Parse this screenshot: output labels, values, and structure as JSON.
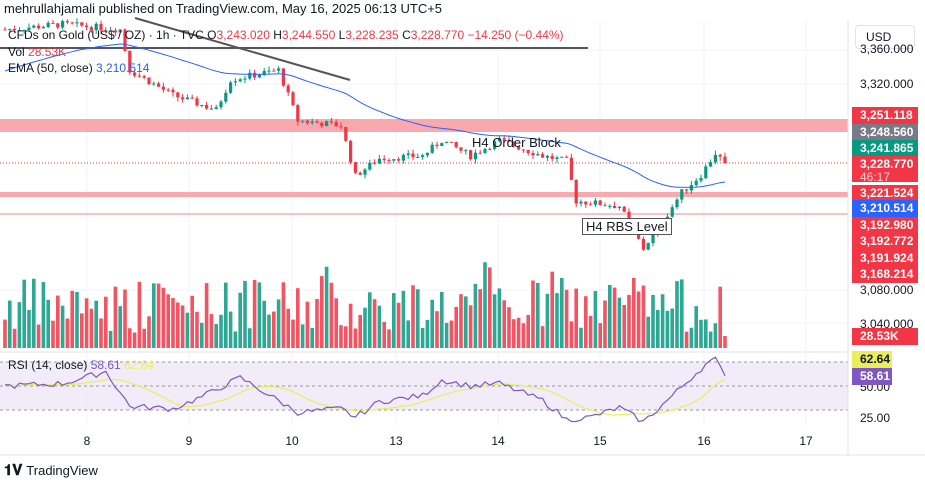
{
  "header": {
    "published": "mehrullahjamali published on TradingView.com, May 16, 2025 06:13 UTC+5"
  },
  "legend": {
    "symbol": "CFDs on Gold (US$ / OZ) · 1h · TVC",
    "o_label": "O",
    "open": "3,243.020",
    "h_label": "H",
    "high": "3,244.550",
    "l_label": "L",
    "low": "3,228.235",
    "c_label": "C",
    "close": "3,228.770",
    "change": "−14.250 (−0.44%)",
    "vol_label": "Vol",
    "vol_value": "28.53K",
    "ema_label": "EMA (50, close)",
    "ema_value": "3,210.514",
    "rsi_label": "RSI (14, close)",
    "rsi_value": "58.61",
    "rsi_ma_value": "62.64"
  },
  "annotations": {
    "order_block": "H4 Order Block",
    "rbs": "H4 RBS Level"
  },
  "axis": {
    "currency": "USD",
    "ticks": [
      "3,360.000",
      "3,320.000",
      "3,080.000",
      "3,040.000"
    ],
    "rsi_ticks": [
      "50.00",
      "25.00"
    ]
  },
  "price_labels": [
    {
      "text": "3,251.118",
      "color": "#f23645"
    },
    {
      "text": "3,248.560",
      "color": "#787b86"
    },
    {
      "text": "3,241.865",
      "color": "#089981"
    },
    {
      "text": "3,228.770",
      "color": "#f23645",
      "sub": "46:17"
    },
    {
      "text": "3,221.524",
      "color": "#f23645"
    },
    {
      "text": "3,210.514",
      "color": "#2962ff"
    },
    {
      "text": "3,192.980",
      "color": "#f23645"
    },
    {
      "text": "3,192.772",
      "color": "#f23645"
    },
    {
      "text": "3,191.924",
      "color": "#f23645"
    },
    {
      "text": "3,168.214",
      "color": "#f23645"
    }
  ],
  "vol_label_box": "28.53K",
  "rsi_boxes": {
    "ma": "62.64",
    "rsi": "58.61"
  },
  "x_axis": [
    "8",
    "9",
    "10",
    "13",
    "14",
    "15",
    "16",
    "17"
  ],
  "footer": {
    "brand": "TradingView"
  },
  "colors": {
    "up": "#089981",
    "down": "#f23645",
    "ema": "#2962ff",
    "rsi": "#7e57c2",
    "rsi_ma": "#e8ef5a"
  },
  "chart_data": {
    "type": "candlestick",
    "title": "CFDs on Gold (US$ / OZ) · 1h · TVC",
    "close_keypoints": [
      [
        0,
        3383
      ],
      [
        12,
        3389
      ],
      [
        24,
        3383
      ],
      [
        26,
        3336
      ],
      [
        35,
        3307
      ],
      [
        44,
        3290
      ],
      [
        47,
        3325
      ],
      [
        57,
        3336
      ],
      [
        61,
        3278
      ],
      [
        70,
        3272
      ],
      [
        73,
        3214
      ],
      [
        78,
        3234
      ],
      [
        87,
        3237
      ],
      [
        91,
        3255
      ],
      [
        97,
        3237
      ],
      [
        103,
        3255
      ],
      [
        112,
        3237
      ],
      [
        117,
        3231
      ],
      [
        119,
        3185
      ],
      [
        128,
        3179
      ],
      [
        133,
        3130
      ],
      [
        138,
        3170
      ],
      [
        141,
        3195
      ],
      [
        145,
        3215
      ],
      [
        148,
        3240
      ],
      [
        150,
        3228.77
      ]
    ],
    "rsi_keypoints": [
      [
        0,
        50
      ],
      [
        12,
        52
      ],
      [
        21,
        62
      ],
      [
        26,
        33
      ],
      [
        35,
        31
      ],
      [
        41,
        41
      ],
      [
        49,
        57
      ],
      [
        61,
        28
      ],
      [
        70,
        31
      ],
      [
        73,
        24
      ],
      [
        78,
        37
      ],
      [
        87,
        42
      ],
      [
        91,
        55
      ],
      [
        97,
        50
      ],
      [
        103,
        52
      ],
      [
        112,
        38
      ],
      [
        117,
        22
      ],
      [
        122,
        24
      ],
      [
        128,
        32
      ],
      [
        133,
        20
      ],
      [
        138,
        38
      ],
      [
        143,
        57
      ],
      [
        146,
        68
      ],
      [
        148,
        72
      ],
      [
        150,
        58.61
      ]
    ],
    "ylim": [
      3060,
      3400
    ]
  }
}
